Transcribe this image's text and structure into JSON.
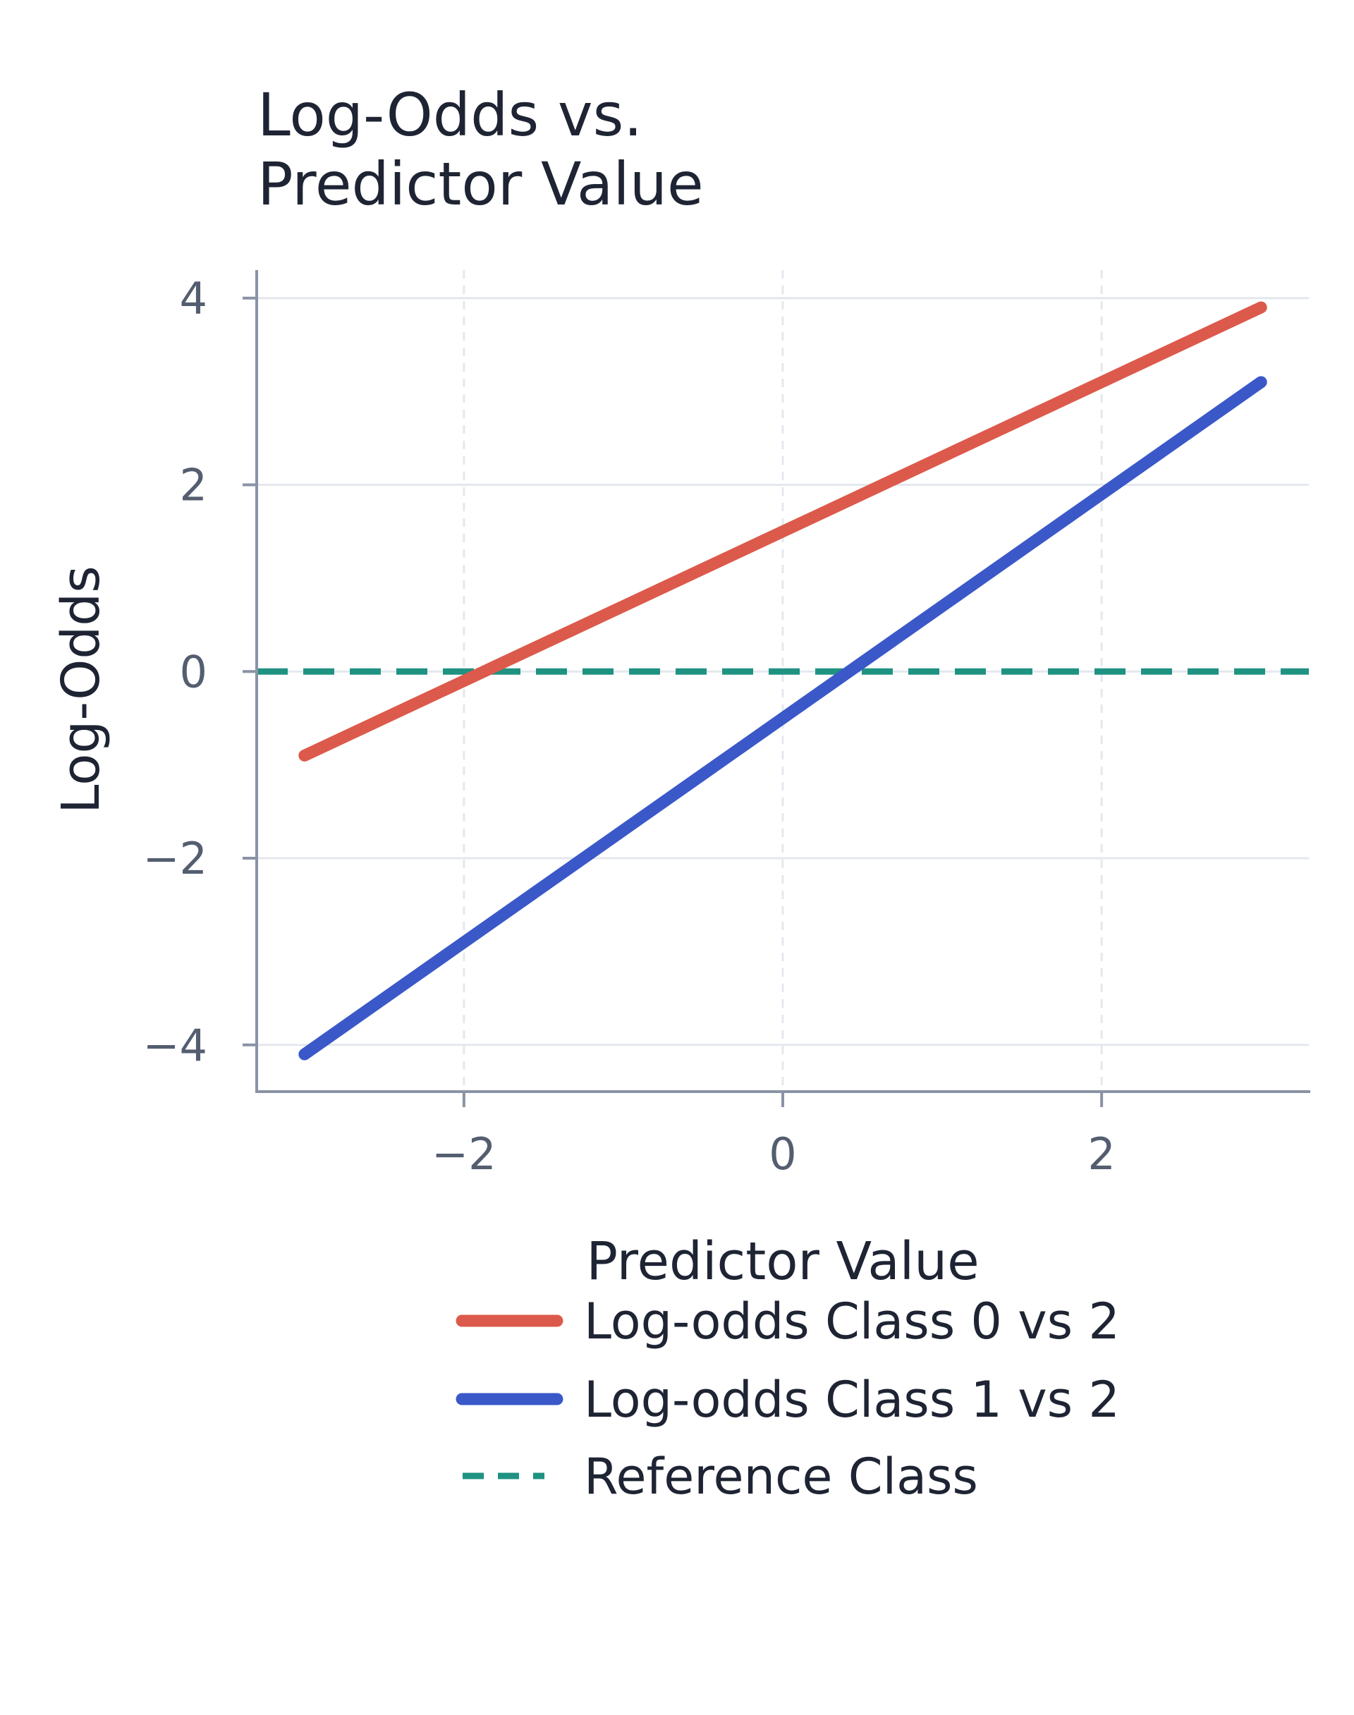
{
  "chart_data": {
    "type": "line",
    "title_lines": [
      "Log-Odds vs.",
      "Predictor Value"
    ],
    "xlabel": "Predictor Value",
    "ylabel": "Log-Odds",
    "xlim": [
      -3.3,
      3.3
    ],
    "ylim": [
      -4.5,
      4.3
    ],
    "x_ticks": [
      -2,
      0,
      2
    ],
    "x_tick_labels": [
      "−2",
      "0",
      "2"
    ],
    "y_ticks": [
      -4,
      -2,
      0,
      2,
      4
    ],
    "y_tick_labels": [
      "−4",
      "−2",
      "0",
      "2",
      "4"
    ],
    "grid": {
      "horizontal": "solid",
      "vertical": "dashed"
    },
    "legend_position": "bottom",
    "series": [
      {
        "name": "Log-odds Class 0 vs 2",
        "x": [
          -3,
          3
        ],
        "y": [
          -0.9,
          3.9
        ],
        "color": "#dc5a4b",
        "style": "solid"
      },
      {
        "name": "Log-odds Class 1 vs 2",
        "x": [
          -3,
          3
        ],
        "y": [
          -4.1,
          3.1
        ],
        "color": "#3a58c8",
        "style": "solid"
      },
      {
        "name": "Reference Class",
        "x": [
          -3.3,
          3.3
        ],
        "y": [
          0,
          0
        ],
        "color": "#1f9282",
        "style": "dashed"
      }
    ]
  }
}
